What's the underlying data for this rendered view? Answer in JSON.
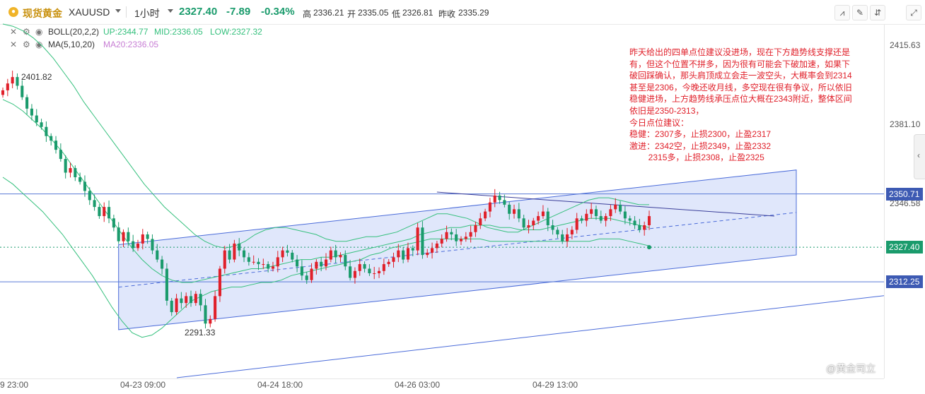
{
  "header": {
    "symbol_cn": "现货黄金",
    "symbol": "XAUUSD",
    "interval": "1小时",
    "price": "2327.40",
    "change": "-7.89",
    "change_pct": "-0.34%",
    "high_label": "高",
    "high": "2336.21",
    "open_label": "开",
    "open": "2335.05",
    "low_label": "低",
    "low": "2326.81",
    "prev_close_label": "昨收",
    "prev_close": "2335.29"
  },
  "indicators": {
    "boll": {
      "name": "BOLL(20,2,2)",
      "up": "UP:2344.77",
      "mid": "MID:2336.05",
      "low": "LOW:2327.32"
    },
    "ma": {
      "name": "MA(5,10,20)",
      "ma20": "MA20:2336.05"
    }
  },
  "colors": {
    "up": "#e0202a",
    "down": "#1a9b6c",
    "boll": "#35c07d",
    "channel_fill": "#dbe3fa",
    "channel_line": "#4a6bd9",
    "hline": "#5a7ad6",
    "axis_label": "#3d5ab3"
  },
  "chart_data": {
    "type": "candlestick",
    "price_axis_ticks": [
      "2415.63",
      "2381.10",
      "2346.58",
      "2312.25"
    ],
    "price_axis_labels": [
      {
        "value": "2350.71",
        "kind": "hline"
      },
      {
        "value": "2327.40",
        "kind": "current"
      },
      {
        "value": "2312.25",
        "kind": "hline"
      }
    ],
    "ylim": [
      2270,
      2425
    ],
    "x_labels": [
      "9 23:00",
      "04-23 09:00",
      "04-24 18:00",
      "04-26 03:00",
      "04-29 13:00"
    ],
    "annotations": [
      "2401.82",
      "2291.33"
    ],
    "horizontal_lines": [
      2350.71,
      2312.25
    ],
    "current_price": 2327.4,
    "candles_close": [
      2396,
      2399,
      2401.8,
      2398,
      2393,
      2388,
      2385,
      2382,
      2380,
      2376,
      2374,
      2370,
      2366,
      2360,
      2362,
      2358,
      2356,
      2352,
      2348,
      2345,
      2341,
      2345,
      2340,
      2336,
      2330,
      2334,
      2330,
      2327,
      2329,
      2333,
      2331,
      2326,
      2322,
      2318,
      2304,
      2299,
      2305,
      2303,
      2306,
      2303,
      2307,
      2302,
      2294,
      2296,
      2306,
      2318,
      2326,
      2322,
      2329,
      2326,
      2323,
      2321,
      2321,
      2320,
      2320,
      2318,
      2319,
      2323,
      2326,
      2325,
      2322,
      2319,
      2315,
      2313,
      2318,
      2321,
      2319,
      2322,
      2326,
      2323,
      2324,
      2319,
      2314,
      2317,
      2320,
      2318,
      2316,
      2316,
      2317,
      2320,
      2321,
      2323,
      2326,
      2322,
      2327,
      2326,
      2336,
      2324,
      2325,
      2327,
      2329,
      2331,
      2334,
      2333,
      2330,
      2331,
      2332,
      2334,
      2337,
      2340,
      2343,
      2347,
      2350,
      2348,
      2346,
      2342,
      2344,
      2340,
      2336,
      2337,
      2339,
      2341,
      2343,
      2337,
      2335,
      2333,
      2330,
      2333,
      2335,
      2340,
      2339,
      2342,
      2344,
      2341,
      2339,
      2341,
      2344,
      2346,
      2343,
      2340,
      2339,
      2337,
      2335,
      2337,
      2341
    ],
    "boll_up": [
      2425,
      2424,
      2422,
      2419,
      2415,
      2410,
      2404,
      2398,
      2391,
      2385,
      2379,
      2373,
      2367,
      2361,
      2355,
      2350,
      2345,
      2341,
      2337,
      2333,
      2330,
      2328,
      2327,
      2328,
      2330,
      2333,
      2335,
      2336,
      2336,
      2335,
      2334,
      2333,
      2331,
      2330,
      2330,
      2331,
      2332,
      2332,
      2333,
      2334,
      2336,
      2338,
      2340,
      2342,
      2342,
      2341,
      2340,
      2338,
      2336,
      2335,
      2334,
      2334,
      2336,
      2338,
      2340,
      2342,
      2344,
      2346,
      2348,
      2349,
      2349,
      2348,
      2347,
      2346,
      2346
    ],
    "boll_mid": [
      2392,
      2390,
      2387,
      2383,
      2379,
      2374,
      2369,
      2363,
      2357,
      2351,
      2345,
      2339,
      2333,
      2327,
      2322,
      2318,
      2315,
      2313,
      2312,
      2312,
      2313,
      2314,
      2315,
      2316,
      2317,
      2318,
      2318,
      2319,
      2320,
      2321,
      2322,
      2322,
      2323,
      2323,
      2324,
      2325,
      2326,
      2327,
      2328,
      2329,
      2330,
      2331,
      2333,
      2334,
      2335,
      2336,
      2336,
      2337,
      2337,
      2337,
      2336,
      2336,
      2335,
      2335,
      2335,
      2336,
      2337,
      2338,
      2339,
      2340,
      2340,
      2340,
      2339,
      2338,
      2337,
      2336
    ],
    "boll_low": [
      2358,
      2355,
      2351,
      2347,
      2343,
      2338,
      2333,
      2327,
      2321,
      2315,
      2308,
      2301,
      2295,
      2290,
      2288,
      2289,
      2292,
      2296,
      2300,
      2304,
      2306,
      2308,
      2309,
      2310,
      2310,
      2311,
      2312,
      2312,
      2313,
      2315,
      2316,
      2317,
      2318,
      2319,
      2320,
      2321,
      2322,
      2324,
      2325,
      2327,
      2328,
      2329,
      2330,
      2331,
      2331,
      2331,
      2331,
      2331,
      2331,
      2330,
      2330,
      2330,
      2330,
      2330,
      2330,
      2330,
      2330,
      2330,
      2330,
      2330,
      2331,
      2331,
      2331,
      2330,
      2329,
      2328
    ]
  },
  "annotation_text": "昨天给出的四单点位建议没进场，现在下方趋势线支撑还是有，但这个位置不拼多，因为很有可能会下破加速，如果下破回踩确认，那头肩顶成立会走一波空头，大概率会到2314甚至是2306，今晚还收月线，多空现在很有争议，所以依旧稳健进场，上方趋势线承压点位大概在2343附近，整体区间依旧是2350-2313，\n今日点位建议：\n稳健：2307多，止损2300，止盈2317\n激进：2342空，止损2349，止盈2332\n        2315多，止损2308，止盈2325",
  "watermark": "@黄金司立",
  "toolbar_icons": [
    "indicator-icon",
    "draw-icon",
    "compare-icon",
    "fullscreen-icon"
  ]
}
